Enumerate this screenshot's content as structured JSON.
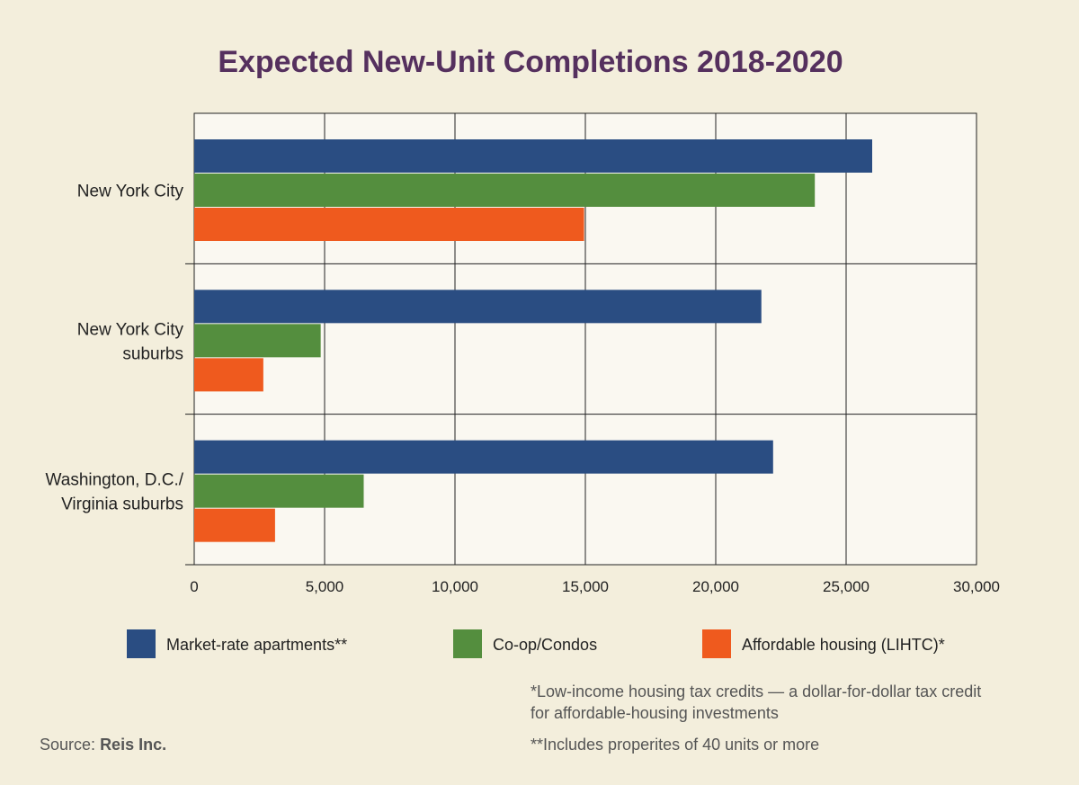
{
  "chart_data": {
    "type": "bar",
    "orientation": "horizontal",
    "title": "Expected New-Unit Completions 2018-2020",
    "categories": [
      [
        "New York City"
      ],
      [
        "New York City",
        "suburbs"
      ],
      [
        "Washington, D.C./",
        "Virginia suburbs"
      ]
    ],
    "series": [
      {
        "name": "Market-rate apartments**",
        "color": "#2a4d82",
        "values": [
          26000,
          21750,
          22200
        ]
      },
      {
        "name": "Co-op/Condos",
        "color": "#548e3e",
        "values": [
          23800,
          4850,
          6500
        ]
      },
      {
        "name": "Affordable housing (LIHTC)*",
        "color": "#ef5a1e",
        "values": [
          14950,
          2650,
          3100
        ]
      }
    ],
    "xlim": [
      0,
      30000
    ],
    "xticks": [
      0,
      5000,
      10000,
      15000,
      20000,
      25000,
      30000
    ],
    "xtick_labels": [
      "0",
      "5,000",
      "10,000",
      "15,000",
      "20,000",
      "25,000",
      "30,000"
    ],
    "grid": true,
    "legend_position": "bottom"
  },
  "footnotes": {
    "lihtc": "*Low-income housing tax credits — a dollar-for-dollar tax credit for affordable-housing investments",
    "market_rate": "**Includes properites of 40 units or more"
  },
  "source": {
    "label": "Source:",
    "name": "Reis Inc."
  },
  "colors": {
    "background": "#f3eedc",
    "plot_background": "#faf8f1",
    "title": "#55305e"
  }
}
